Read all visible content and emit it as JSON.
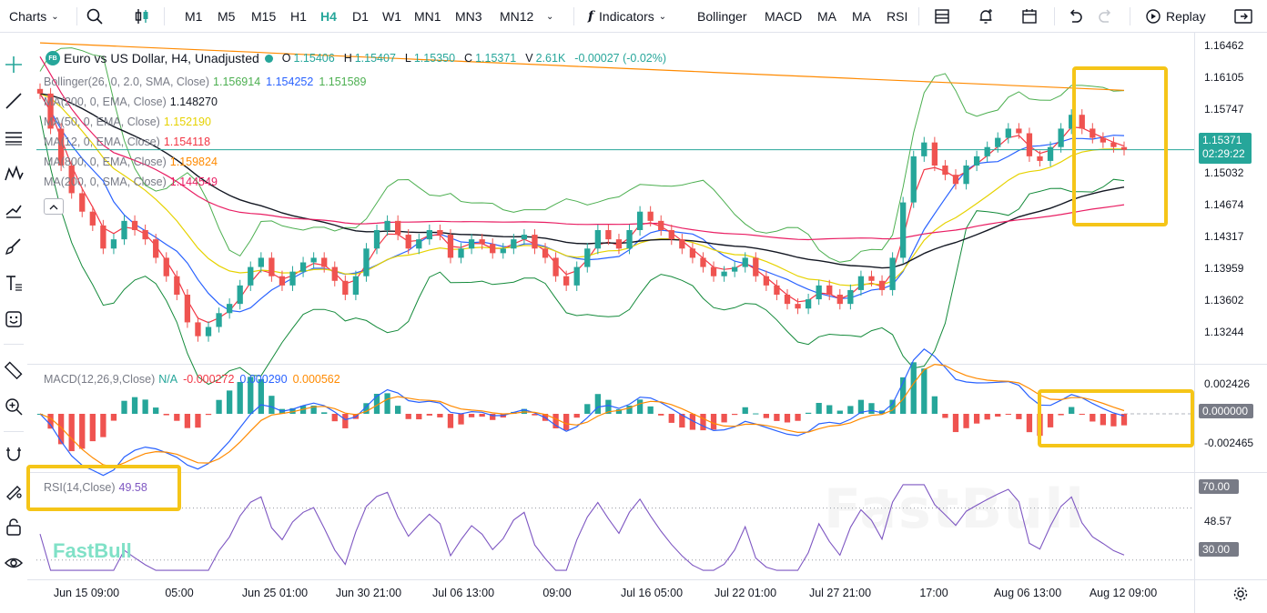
{
  "toolbar": {
    "charts_label": "Charts",
    "timeframes": [
      "M1",
      "M5",
      "M15",
      "H1",
      "H4",
      "D1",
      "W1",
      "MN1",
      "MN3",
      "MN12"
    ],
    "active_timeframe": "H4",
    "indicators_label": "Indicators",
    "quick_indicators": [
      "Bollinger",
      "MACD",
      "MA",
      "MA",
      "RSI"
    ],
    "replay_label": "Replay"
  },
  "symbol": {
    "badge": "FB",
    "title": "Euro vs US Dollar, H4, Unadjusted",
    "open_label": "O",
    "open": "1.15406",
    "high_label": "H",
    "high": "1.15407",
    "low_label": "L",
    "low": "1.15350",
    "close_label": "C",
    "close": "1.15371",
    "volume_label": "V",
    "volume": "2.61K",
    "change": "-0.00027 (-0.02%)"
  },
  "studies": [
    {
      "name": "Bollinger(26, 0, 2.0, SMA, Close)",
      "values": [
        "1.156914",
        "1.154252",
        "1.151589"
      ],
      "colors": [
        "#4caf50",
        "#2962ff",
        "#4caf50"
      ]
    },
    {
      "name": "MA(200, 0, EMA, Close)",
      "values": [
        "1.148270"
      ],
      "colors": [
        "#131722"
      ]
    },
    {
      "name": "MA(50, 0, EMA, Close)",
      "values": [
        "1.152190"
      ],
      "colors": [
        "#e6d200"
      ]
    },
    {
      "name": "MA(12, 0, EMA, Close)",
      "values": [
        "1.154118"
      ],
      "colors": [
        "#f23645"
      ]
    },
    {
      "name": "MA(800, 0, EMA, Close)",
      "values": [
        "1.159824"
      ],
      "colors": [
        "#ff8a00"
      ]
    },
    {
      "name": "MA(200, 0, SMA, Close)",
      "values": [
        "1.144549"
      ],
      "colors": [
        "#e91e63"
      ]
    }
  ],
  "macd": {
    "name": "MACD(12,26,9,Close)",
    "na": "N/A",
    "v1": "-0.000272",
    "v2": "0.000290",
    "v3": "0.000562"
  },
  "rsi": {
    "name": "RSI(14,Close)",
    "value": "49.58"
  },
  "price_axis": [
    "1.16462",
    "1.16105",
    "1.15747",
    "1.15390",
    "1.15032",
    "1.14674",
    "1.14317",
    "1.13959",
    "1.13602",
    "1.13244"
  ],
  "price_tag": {
    "price": "1.15371",
    "countdown": "02:29:22",
    "color": "#26a69a"
  },
  "macd_axis": [
    "0.002426",
    "0.000000",
    "-0.002465"
  ],
  "rsi_axis": [
    "70.00",
    "48.57",
    "30.00"
  ],
  "time_axis": [
    "Jun 15 09:00",
    "05:00",
    "Jun 25 01:00",
    "Jun 30 21:00",
    "Jul 06 13:00",
    "09:00",
    "Jul 16 05:00",
    "Jul 22 01:00",
    "Jul 27 21:00",
    "17:00",
    "Aug 06 13:00",
    "Aug 12 09:00"
  ],
  "watermark": "FastBull",
  "logo": "FastBull",
  "chart_data": {
    "type": "candlestick",
    "symbol": "EURUSD",
    "timeframe": "H4",
    "ylim": [
      1.131,
      1.166
    ],
    "close_series": [
      1.1598,
      1.156,
      1.152,
      1.149,
      1.147,
      1.1455,
      1.143,
      1.144,
      1.146,
      1.145,
      1.144,
      1.142,
      1.14,
      1.138,
      1.135,
      1.1335,
      1.1345,
      1.136,
      1.137,
      1.139,
      1.141,
      1.142,
      1.14,
      1.139,
      1.1405,
      1.1415,
      1.142,
      1.141,
      1.1395,
      1.138,
      1.14,
      1.143,
      1.145,
      1.146,
      1.1445,
      1.143,
      1.144,
      1.145,
      1.1445,
      1.142,
      1.143,
      1.144,
      1.1435,
      1.1425,
      1.143,
      1.144,
      1.1445,
      1.143,
      1.142,
      1.14,
      1.139,
      1.141,
      1.143,
      1.145,
      1.144,
      1.143,
      1.145,
      1.147,
      1.146,
      1.145,
      1.144,
      1.143,
      1.142,
      1.141,
      1.14,
      1.1405,
      1.141,
      1.142,
      1.14,
      1.139,
      1.138,
      1.137,
      1.1365,
      1.1375,
      1.139,
      1.138,
      1.137,
      1.1385,
      1.14,
      1.1395,
      1.1385,
      1.142,
      1.148,
      1.153,
      1.1545,
      1.152,
      1.151,
      1.15,
      1.152,
      1.153,
      1.154,
      1.155,
      1.156,
      1.1555,
      1.153,
      1.1525,
      1.154,
      1.156,
      1.1575,
      1.156,
      1.155,
      1.1545,
      1.154,
      1.1537
    ],
    "macd_range": [
      -0.002465,
      0.002426
    ],
    "rsi_levels": [
      70,
      30
    ]
  }
}
